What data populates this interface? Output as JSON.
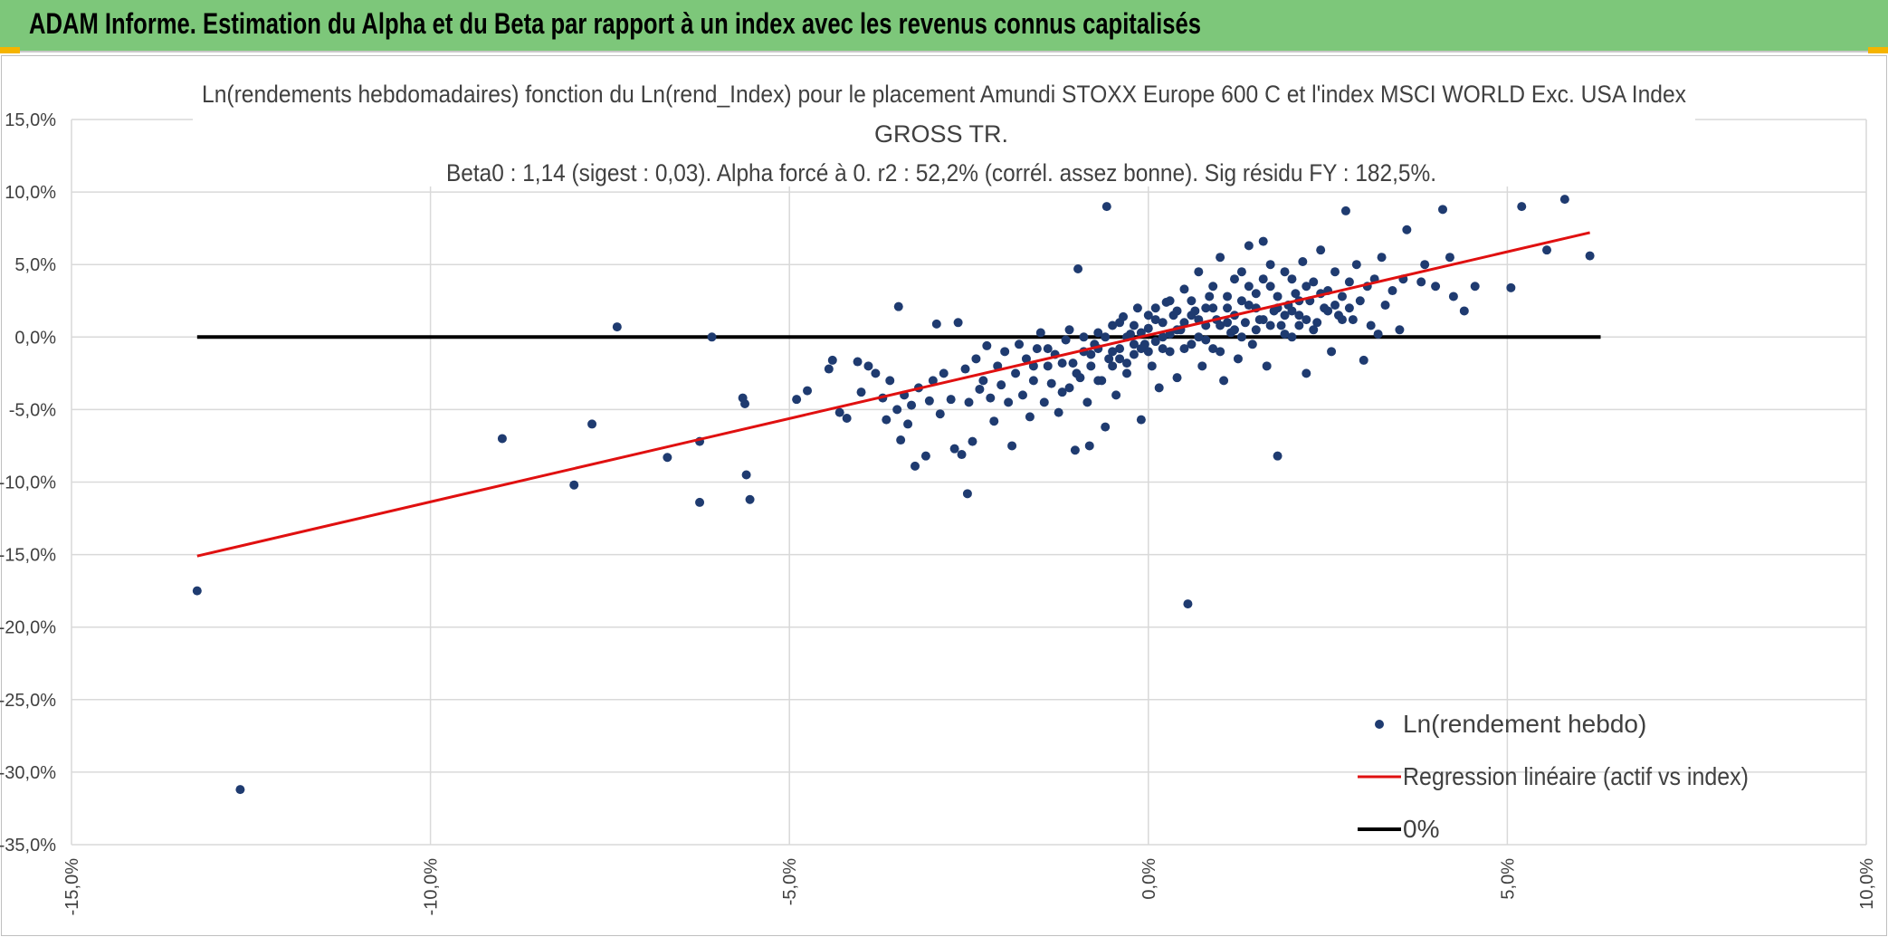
{
  "header": {
    "title": "ADAM Informe. Estimation du Alpha et du Beta par rapport à un index avec les revenus connus capitalisés"
  },
  "colors": {
    "header_bg": "#7dc77a",
    "points": "#1f3b70",
    "regression": "#e01010",
    "zero_line": "#000000",
    "grid": "#d9d9d9"
  },
  "chart_data": {
    "type": "scatter",
    "title_lines": [
      "Ln(rendements hebdomadaires) fonction du Ln(rend_Index) pour le placement Amundi STOXX Europe 600 C et l'index MSCI WORLD Exc. USA Index",
      "GROSS TR.",
      "Beta0 : 1,14 (sigest : 0,03). Alpha forcé à 0. r2 : 52,2% (corrél. assez bonne). Sig résidu FY : 182,5%."
    ],
    "xlim": [
      -0.15,
      0.1
    ],
    "ylim": [
      -0.35,
      0.15
    ],
    "x_ticks": [
      -0.15,
      -0.1,
      -0.05,
      0.0,
      0.05,
      0.1
    ],
    "x_tick_labels": [
      "-15,0%",
      "-10,0%",
      "-5,0%",
      "0,0%",
      "5,0%",
      "10,0%"
    ],
    "y_ticks": [
      0.15,
      0.1,
      0.05,
      0.0,
      -0.05,
      -0.1,
      -0.15,
      -0.2,
      -0.25,
      -0.3,
      -0.35
    ],
    "y_tick_labels": [
      "15,0%",
      "10,0%",
      "5,0%",
      "0,0%",
      "-5,0%",
      "-10,0%",
      "-15,0%",
      "-20,0%",
      "-25,0%",
      "-30,0%",
      "-35,0%"
    ],
    "grid": true,
    "legend_position": "bottom-right",
    "legend": [
      "Ln(rendement hebdo)",
      "Regression linéaire (actif vs index)",
      "0%"
    ],
    "series": [
      {
        "name": "Ln(rendement hebdo)",
        "kind": "scatter",
        "points": [
          [
            -0.1325,
            -0.175
          ],
          [
            -0.1265,
            -0.312
          ],
          [
            -0.09,
            -0.07
          ],
          [
            -0.08,
            -0.102
          ],
          [
            -0.0775,
            -0.06
          ],
          [
            -0.074,
            0.007
          ],
          [
            -0.067,
            -0.083
          ],
          [
            -0.0625,
            -0.114
          ],
          [
            -0.0625,
            -0.072
          ],
          [
            -0.0608,
            0.0
          ],
          [
            -0.0565,
            -0.042
          ],
          [
            -0.0562,
            -0.046
          ],
          [
            -0.056,
            -0.095
          ],
          [
            -0.0555,
            -0.112
          ],
          [
            -0.049,
            -0.043
          ],
          [
            -0.0475,
            -0.037
          ],
          [
            -0.0445,
            -0.022
          ],
          [
            -0.044,
            -0.016
          ],
          [
            -0.043,
            -0.052
          ],
          [
            -0.042,
            -0.056
          ],
          [
            -0.0405,
            -0.017
          ],
          [
            -0.04,
            -0.038
          ],
          [
            -0.039,
            -0.02
          ],
          [
            -0.038,
            -0.025
          ],
          [
            -0.037,
            -0.042
          ],
          [
            -0.0365,
            -0.057
          ],
          [
            -0.036,
            -0.03
          ],
          [
            -0.035,
            -0.05
          ],
          [
            -0.0348,
            0.021
          ],
          [
            -0.0345,
            -0.071
          ],
          [
            -0.034,
            -0.04
          ],
          [
            -0.0335,
            -0.06
          ],
          [
            -0.033,
            -0.047
          ],
          [
            -0.0325,
            -0.089
          ],
          [
            -0.032,
            -0.035
          ],
          [
            -0.031,
            -0.082
          ],
          [
            -0.0305,
            -0.044
          ],
          [
            -0.03,
            -0.03
          ],
          [
            -0.0295,
            0.009
          ],
          [
            -0.029,
            -0.053
          ],
          [
            -0.0285,
            -0.025
          ],
          [
            -0.0275,
            -0.043
          ],
          [
            -0.027,
            -0.077
          ],
          [
            -0.0265,
            0.01
          ],
          [
            -0.026,
            -0.081
          ],
          [
            -0.0255,
            -0.022
          ],
          [
            -0.0252,
            -0.108
          ],
          [
            -0.025,
            -0.045
          ],
          [
            -0.0245,
            -0.072
          ],
          [
            -0.024,
            -0.015
          ],
          [
            -0.0235,
            -0.036
          ],
          [
            -0.023,
            -0.03
          ],
          [
            -0.0225,
            -0.006
          ],
          [
            -0.022,
            -0.042
          ],
          [
            -0.0215,
            -0.058
          ],
          [
            -0.021,
            -0.02
          ],
          [
            -0.0205,
            -0.033
          ],
          [
            -0.02,
            -0.01
          ],
          [
            -0.0195,
            -0.045
          ],
          [
            -0.019,
            -0.075
          ],
          [
            -0.0185,
            -0.025
          ],
          [
            -0.018,
            -0.005
          ],
          [
            -0.0175,
            -0.04
          ],
          [
            -0.017,
            -0.015
          ],
          [
            -0.0165,
            -0.055
          ],
          [
            -0.016,
            -0.03
          ],
          [
            -0.0155,
            -0.008
          ],
          [
            -0.015,
            0.003
          ],
          [
            -0.0145,
            -0.045
          ],
          [
            -0.014,
            -0.02
          ],
          [
            -0.0135,
            -0.032
          ],
          [
            -0.013,
            -0.012
          ],
          [
            -0.0125,
            -0.052
          ],
          [
            -0.012,
            -0.038
          ],
          [
            -0.0115,
            -0.002
          ],
          [
            -0.011,
            0.005
          ],
          [
            -0.0105,
            -0.018
          ],
          [
            -0.0102,
            -0.078
          ],
          [
            -0.0098,
            0.047
          ],
          [
            -0.0095,
            -0.028
          ],
          [
            -0.009,
            -0.01
          ],
          [
            -0.0085,
            -0.045
          ],
          [
            -0.0082,
            -0.075
          ],
          [
            -0.008,
            -0.02
          ],
          [
            -0.0075,
            -0.005
          ],
          [
            -0.007,
            0.003
          ],
          [
            -0.0065,
            -0.03
          ],
          [
            -0.006,
            -0.062
          ],
          [
            -0.0058,
            0.09
          ],
          [
            -0.0055,
            -0.015
          ],
          [
            -0.005,
            0.008
          ],
          [
            -0.0045,
            -0.04
          ],
          [
            -0.004,
            -0.008
          ],
          [
            -0.0035,
            0.014
          ],
          [
            -0.003,
            -0.025
          ],
          [
            -0.0025,
            0.002
          ],
          [
            -0.002,
            -0.012
          ],
          [
            -0.0015,
            0.02
          ],
          [
            -0.001,
            -0.057
          ],
          [
            -0.0005,
            -0.005
          ],
          [
            0.0,
            0.006
          ],
          [
            0.0005,
            -0.02
          ],
          [
            0.001,
            0.012
          ],
          [
            0.0015,
            -0.035
          ],
          [
            0.002,
            0.0
          ],
          [
            0.0025,
            0.024
          ],
          [
            0.003,
            -0.01
          ],
          [
            0.0035,
            0.015
          ],
          [
            0.004,
            -0.028
          ],
          [
            0.0045,
            0.005
          ],
          [
            0.005,
            0.033
          ],
          [
            0.0055,
            -0.184
          ],
          [
            0.006,
            -0.005
          ],
          [
            0.0065,
            0.018
          ],
          [
            0.007,
            0.045
          ],
          [
            0.0075,
            -0.02
          ],
          [
            0.008,
            0.008
          ],
          [
            0.0085,
            0.028
          ],
          [
            0.009,
            -0.008
          ],
          [
            0.0095,
            0.012
          ],
          [
            0.01,
            0.055
          ],
          [
            0.0105,
            -0.03
          ],
          [
            0.011,
            0.02
          ],
          [
            0.0115,
            0.003
          ],
          [
            0.012,
            0.04
          ],
          [
            0.0125,
            -0.015
          ],
          [
            0.013,
            0.025
          ],
          [
            0.0135,
            0.01
          ],
          [
            0.014,
            0.063
          ],
          [
            0.0145,
            -0.005
          ],
          [
            0.015,
            0.03
          ],
          [
            0.0155,
            0.012
          ],
          [
            0.016,
            0.066
          ],
          [
            0.0165,
            -0.02
          ],
          [
            0.017,
            0.035
          ],
          [
            0.0175,
            0.018
          ],
          [
            0.018,
            -0.082
          ],
          [
            0.0185,
            0.008
          ],
          [
            0.019,
            0.045
          ],
          [
            0.0195,
            0.022
          ],
          [
            0.02,
            0.0
          ],
          [
            0.0205,
            0.03
          ],
          [
            0.021,
            0.015
          ],
          [
            0.0215,
            0.052
          ],
          [
            0.022,
            -0.025
          ],
          [
            0.0225,
            0.025
          ],
          [
            0.023,
            0.038
          ],
          [
            0.0235,
            0.01
          ],
          [
            0.024,
            0.06
          ],
          [
            0.0245,
            0.02
          ],
          [
            0.025,
            0.032
          ],
          [
            0.0255,
            -0.01
          ],
          [
            0.026,
            0.045
          ],
          [
            0.0265,
            0.015
          ],
          [
            0.027,
            0.028
          ],
          [
            0.0275,
            0.087
          ],
          [
            0.028,
            0.038
          ],
          [
            0.0285,
            0.012
          ],
          [
            0.029,
            0.05
          ],
          [
            0.0295,
            0.025
          ],
          [
            0.03,
            -0.016
          ],
          [
            0.0305,
            0.035
          ],
          [
            0.031,
            0.008
          ],
          [
            0.0315,
            0.04
          ],
          [
            0.032,
            0.002
          ],
          [
            0.0325,
            0.055
          ],
          [
            0.033,
            0.022
          ],
          [
            0.034,
            0.032
          ],
          [
            0.035,
            0.005
          ],
          [
            0.0355,
            0.04
          ],
          [
            0.036,
            0.074
          ],
          [
            0.038,
            0.038
          ],
          [
            0.0385,
            0.05
          ],
          [
            0.04,
            0.035
          ],
          [
            0.041,
            0.088
          ],
          [
            0.042,
            0.055
          ],
          [
            0.0425,
            0.028
          ],
          [
            0.044,
            0.018
          ],
          [
            0.0455,
            0.035
          ],
          [
            0.0505,
            0.034
          ],
          [
            0.052,
            0.09
          ],
          [
            0.0555,
            0.06
          ],
          [
            0.058,
            0.095
          ],
          [
            0.0615,
            0.056
          ],
          [
            -0.006,
            0.0
          ],
          [
            -0.004,
            0.01
          ],
          [
            -0.002,
            -0.005
          ],
          [
            0.0,
            -0.01
          ],
          [
            0.002,
            0.01
          ],
          [
            0.004,
            0.005
          ],
          [
            0.006,
            0.015
          ],
          [
            0.008,
            -0.002
          ],
          [
            0.01,
            0.008
          ],
          [
            0.012,
            0.015
          ],
          [
            0.014,
            0.022
          ],
          [
            0.016,
            0.012
          ],
          [
            0.018,
            0.028
          ],
          [
            0.02,
            0.018
          ],
          [
            0.022,
            0.012
          ],
          [
            0.024,
            0.03
          ],
          [
            0.026,
            0.022
          ],
          [
            0.028,
            0.02
          ],
          [
            -0.008,
            -0.012
          ],
          [
            -0.005,
            -0.02
          ],
          [
            -0.003,
            0.0
          ],
          [
            -0.001,
            0.003
          ],
          [
            0.001,
            -0.003
          ],
          [
            0.003,
            0.002
          ],
          [
            0.005,
            0.01
          ],
          [
            0.007,
            0.0
          ],
          [
            0.009,
            0.02
          ],
          [
            0.011,
            0.01
          ],
          [
            0.013,
            0.0
          ],
          [
            0.015,
            0.02
          ],
          [
            0.017,
            0.008
          ],
          [
            0.019,
            0.015
          ],
          [
            0.021,
            0.025
          ],
          [
            0.023,
            0.005
          ],
          [
            0.025,
            0.018
          ],
          [
            0.027,
            0.012
          ],
          [
            -0.012,
            -0.018
          ],
          [
            -0.01,
            -0.025
          ],
          [
            -0.009,
            0.0
          ],
          [
            -0.007,
            -0.008
          ],
          [
            -0.004,
            -0.015
          ],
          [
            -0.002,
            0.008
          ],
          [
            0.0,
            0.015
          ],
          [
            0.002,
            -0.008
          ],
          [
            0.004,
            0.018
          ],
          [
            0.006,
            0.025
          ],
          [
            0.008,
            0.02
          ],
          [
            0.01,
            -0.01
          ],
          [
            0.012,
            0.005
          ],
          [
            0.014,
            0.035
          ],
          [
            0.016,
            0.04
          ],
          [
            0.018,
            0.02
          ],
          [
            0.02,
            0.04
          ],
          [
            0.022,
            0.035
          ],
          [
            -0.016,
            -0.02
          ],
          [
            -0.014,
            -0.008
          ],
          [
            -0.011,
            -0.035
          ],
          [
            -0.007,
            -0.03
          ],
          [
            -0.005,
            -0.01
          ],
          [
            -0.003,
            -0.018
          ],
          [
            -0.001,
            -0.008
          ],
          [
            0.001,
            0.02
          ],
          [
            0.003,
            0.025
          ],
          [
            0.005,
            -0.008
          ],
          [
            0.007,
            0.012
          ],
          [
            0.009,
            0.035
          ],
          [
            0.011,
            0.028
          ],
          [
            0.013,
            0.045
          ],
          [
            0.015,
            0.005
          ],
          [
            0.017,
            0.05
          ],
          [
            0.019,
            0.002
          ],
          [
            0.021,
            0.008
          ]
        ]
      },
      {
        "name": "Regression linéaire (actif vs index)",
        "kind": "line",
        "x": [
          -0.1325,
          0.0615
        ],
        "y": [
          -0.151,
          0.072
        ]
      },
      {
        "name": "0%",
        "kind": "line",
        "x": [
          -0.1325,
          0.063
        ],
        "y": [
          0.0,
          0.0
        ]
      }
    ]
  }
}
